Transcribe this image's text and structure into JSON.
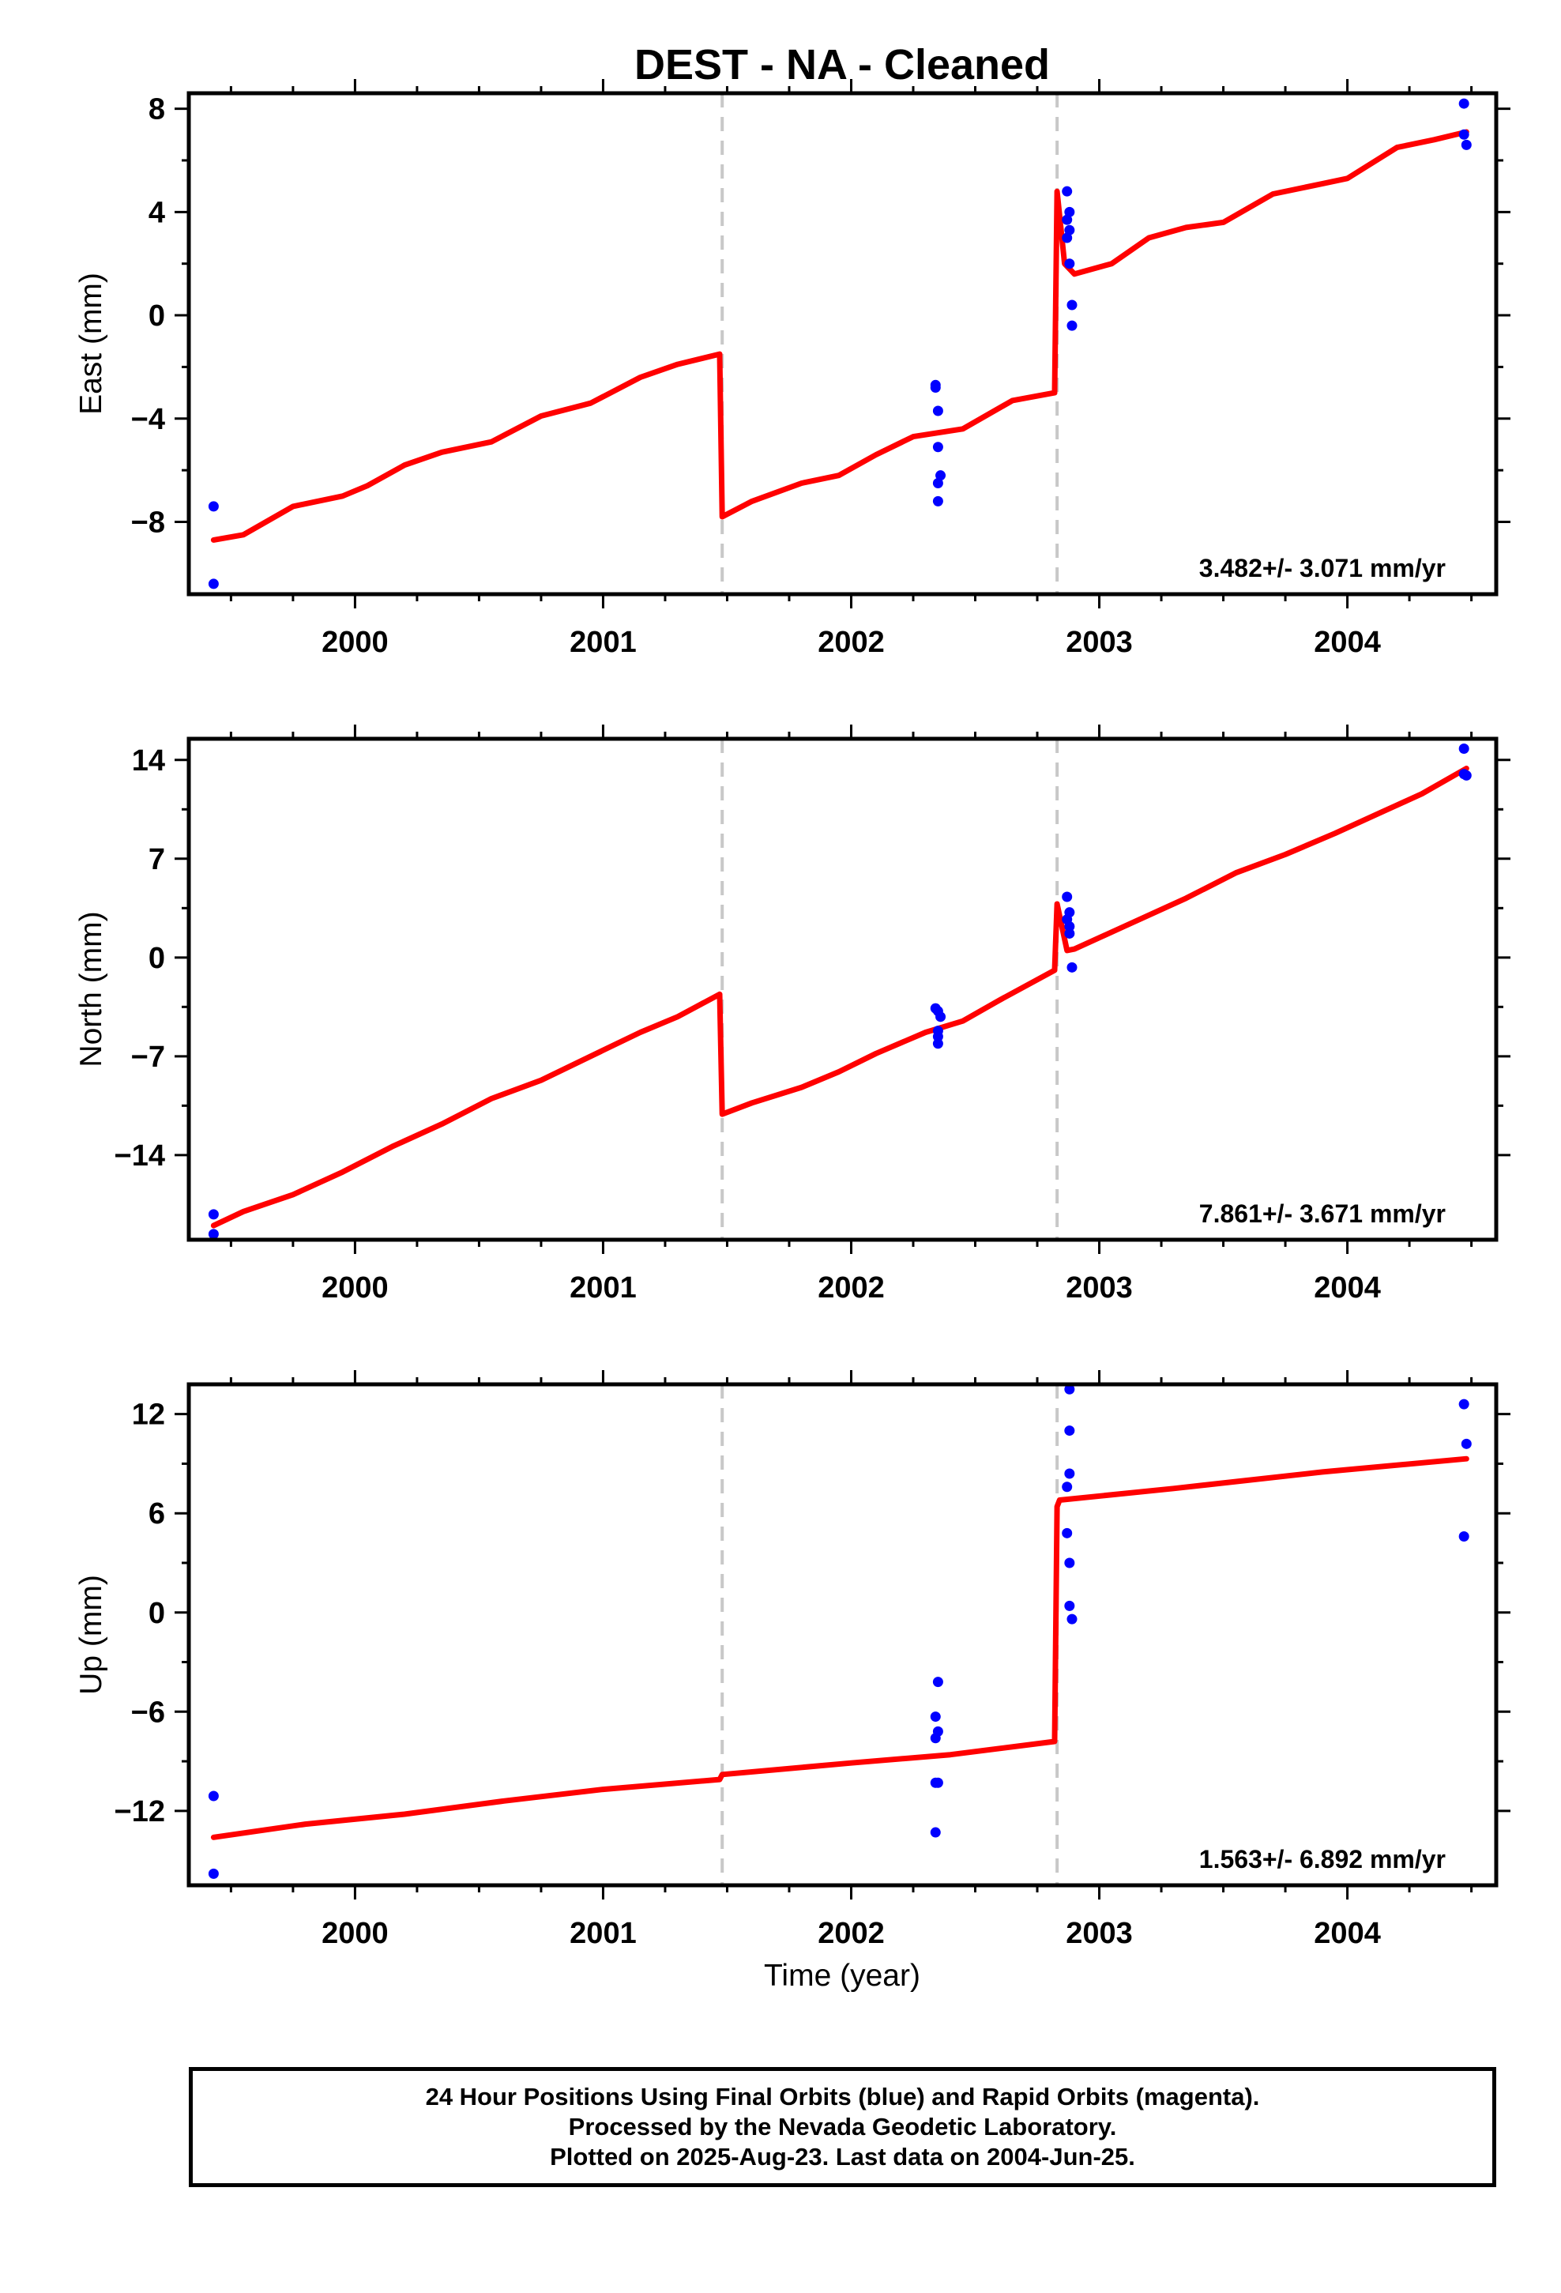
{
  "title": "DEST  - NA - Cleaned",
  "colors": {
    "data_points": "#0000ff",
    "model_line": "#ff0000",
    "event_lines": "#c8c8c8",
    "frame": "#000000"
  },
  "x_axis": {
    "label": "Time (year)",
    "ticks": [
      "2000",
      "2001",
      "2002",
      "2003",
      "2004"
    ]
  },
  "footer": {
    "line1": "24 Hour Positions Using Final Orbits (blue) and Rapid Orbits (magenta).",
    "line2": "Processed by the Nevada Geodetic Laboratory.",
    "line3": "Plotted on 2025-Aug-23. Last data on 2004-Jun-25."
  },
  "chart_data": [
    {
      "type": "scatter",
      "ylabel": "East (mm)",
      "rate_label": "3.482+/- 3.071 mm/yr",
      "xlim": [
        1999.33,
        2004.6
      ],
      "ylim": [
        -10.8,
        8.6
      ],
      "yticks": [
        8,
        4,
        0,
        -4,
        -8
      ],
      "ytick_labels": [
        "8",
        "4",
        "0",
        "−4",
        "−8"
      ],
      "xticks": [
        2000,
        2001,
        2002,
        2003,
        2004
      ],
      "event_lines": [
        2001.48,
        2002.83
      ],
      "points": [
        [
          1999.43,
          -7.4
        ],
        [
          1999.43,
          -10.4
        ],
        [
          2002.34,
          -2.7
        ],
        [
          2002.34,
          -2.8
        ],
        [
          2002.35,
          -3.7
        ],
        [
          2002.35,
          -5.1
        ],
        [
          2002.36,
          -6.2
        ],
        [
          2002.35,
          -6.5
        ],
        [
          2002.35,
          -7.2
        ],
        [
          2002.87,
          4.8
        ],
        [
          2002.88,
          4.0
        ],
        [
          2002.87,
          3.7
        ],
        [
          2002.88,
          3.3
        ],
        [
          2002.87,
          3.0
        ],
        [
          2002.88,
          2.0
        ],
        [
          2002.89,
          0.4
        ],
        [
          2002.89,
          -0.4
        ],
        [
          2004.47,
          8.2
        ],
        [
          2004.47,
          7.0
        ],
        [
          2004.48,
          6.6
        ]
      ],
      "model": [
        [
          1999.43,
          -8.7
        ],
        [
          1999.55,
          -8.5
        ],
        [
          1999.75,
          -7.4
        ],
        [
          1999.95,
          -7.0
        ],
        [
          2000.05,
          -6.6
        ],
        [
          2000.2,
          -5.8
        ],
        [
          2000.35,
          -5.3
        ],
        [
          2000.55,
          -4.9
        ],
        [
          2000.75,
          -3.9
        ],
        [
          2000.95,
          -3.4
        ],
        [
          2001.15,
          -2.4
        ],
        [
          2001.3,
          -1.9
        ],
        [
          2001.47,
          -1.5
        ],
        [
          2001.48,
          -7.8
        ],
        [
          2001.6,
          -7.2
        ],
        [
          2001.8,
          -6.5
        ],
        [
          2001.95,
          -6.2
        ],
        [
          2002.1,
          -5.4
        ],
        [
          2002.25,
          -4.7
        ],
        [
          2002.45,
          -4.4
        ],
        [
          2002.65,
          -3.3
        ],
        [
          2002.82,
          -3.0
        ],
        [
          2002.83,
          4.8
        ],
        [
          2002.86,
          2.0
        ],
        [
          2002.9,
          1.6
        ],
        [
          2003.05,
          2.0
        ],
        [
          2003.2,
          3.0
        ],
        [
          2003.35,
          3.4
        ],
        [
          2003.5,
          3.6
        ],
        [
          2003.7,
          4.7
        ],
        [
          2003.9,
          5.1
        ],
        [
          2004.0,
          5.3
        ],
        [
          2004.2,
          6.5
        ],
        [
          2004.35,
          6.8
        ],
        [
          2004.48,
          7.1
        ]
      ]
    },
    {
      "type": "scatter",
      "ylabel": "North (mm)",
      "rate_label": "7.861+/- 3.671 mm/yr",
      "xlim": [
        1999.33,
        2004.6
      ],
      "ylim": [
        -20.0,
        15.5
      ],
      "yticks": [
        14,
        7,
        0,
        -7,
        -14
      ],
      "ytick_labels": [
        "14",
        "7",
        "0",
        "−7",
        "−14"
      ],
      "xticks": [
        2000,
        2001,
        2002,
        2003,
        2004
      ],
      "event_lines": [
        2001.48,
        2002.83
      ],
      "points": [
        [
          1999.43,
          -18.2
        ],
        [
          1999.43,
          -19.6
        ],
        [
          2002.34,
          -3.6
        ],
        [
          2002.35,
          -3.8
        ],
        [
          2002.36,
          -4.2
        ],
        [
          2002.35,
          -5.2
        ],
        [
          2002.35,
          -5.6
        ],
        [
          2002.35,
          -6.1
        ],
        [
          2002.87,
          4.3
        ],
        [
          2002.88,
          3.2
        ],
        [
          2002.87,
          2.7
        ],
        [
          2002.88,
          2.2
        ],
        [
          2002.88,
          1.7
        ],
        [
          2002.89,
          -0.7
        ],
        [
          2004.47,
          14.8
        ],
        [
          2004.47,
          13.0
        ],
        [
          2004.48,
          12.9
        ]
      ],
      "model": [
        [
          1999.43,
          -19.0
        ],
        [
          1999.55,
          -18.0
        ],
        [
          1999.75,
          -16.8
        ],
        [
          1999.95,
          -15.2
        ],
        [
          2000.15,
          -13.4
        ],
        [
          2000.35,
          -11.8
        ],
        [
          2000.55,
          -10.0
        ],
        [
          2000.75,
          -8.7
        ],
        [
          2000.95,
          -7.0
        ],
        [
          2001.15,
          -5.3
        ],
        [
          2001.3,
          -4.2
        ],
        [
          2001.47,
          -2.6
        ],
        [
          2001.48,
          -11.1
        ],
        [
          2001.6,
          -10.3
        ],
        [
          2001.8,
          -9.2
        ],
        [
          2001.95,
          -8.1
        ],
        [
          2002.1,
          -6.8
        ],
        [
          2002.3,
          -5.3
        ],
        [
          2002.45,
          -4.5
        ],
        [
          2002.6,
          -3.0
        ],
        [
          2002.82,
          -0.9
        ],
        [
          2002.83,
          3.8
        ],
        [
          2002.87,
          0.5
        ],
        [
          2002.9,
          0.6
        ],
        [
          2003.1,
          2.2
        ],
        [
          2003.35,
          4.2
        ],
        [
          2003.55,
          6.0
        ],
        [
          2003.75,
          7.3
        ],
        [
          2003.95,
          8.8
        ],
        [
          2004.15,
          10.4
        ],
        [
          2004.3,
          11.6
        ],
        [
          2004.48,
          13.4
        ]
      ]
    },
    {
      "type": "scatter",
      "ylabel": "Up (mm)",
      "xlabel": "Time (year)",
      "rate_label": "1.563+/- 6.892 mm/yr",
      "xlim": [
        1999.33,
        2004.6
      ],
      "ylim": [
        -16.5,
        13.8
      ],
      "yticks": [
        12,
        6,
        0,
        -6,
        -12
      ],
      "ytick_labels": [
        "12",
        "6",
        "0",
        "−6",
        "−12"
      ],
      "xticks": [
        2000,
        2001,
        2002,
        2003,
        2004
      ],
      "event_lines": [
        2001.48,
        2002.83
      ],
      "points": [
        [
          1999.43,
          -11.1
        ],
        [
          1999.43,
          -15.8
        ],
        [
          2002.35,
          -4.2
        ],
        [
          2002.34,
          -6.3
        ],
        [
          2002.35,
          -7.2
        ],
        [
          2002.34,
          -7.6
        ],
        [
          2002.35,
          -10.3
        ],
        [
          2002.34,
          -10.3
        ],
        [
          2002.34,
          -13.3
        ],
        [
          2002.88,
          13.5
        ],
        [
          2002.88,
          11.0
        ],
        [
          2002.88,
          8.4
        ],
        [
          2002.87,
          7.6
        ],
        [
          2002.87,
          4.8
        ],
        [
          2002.88,
          3.0
        ],
        [
          2002.88,
          0.4
        ],
        [
          2002.89,
          -0.4
        ],
        [
          2004.47,
          12.6
        ],
        [
          2004.48,
          10.2
        ],
        [
          2004.47,
          4.6
        ]
      ],
      "model": [
        [
          1999.43,
          -13.6
        ],
        [
          1999.8,
          -12.8
        ],
        [
          2000.2,
          -12.2
        ],
        [
          2000.6,
          -11.4
        ],
        [
          2001.0,
          -10.7
        ],
        [
          2001.47,
          -10.1
        ],
        [
          2001.48,
          -9.8
        ],
        [
          2002.0,
          -9.1
        ],
        [
          2002.4,
          -8.6
        ],
        [
          2002.82,
          -7.8
        ],
        [
          2002.83,
          6.4
        ],
        [
          2002.84,
          6.8
        ],
        [
          2003.3,
          7.5
        ],
        [
          2003.9,
          8.5
        ],
        [
          2004.48,
          9.3
        ]
      ]
    }
  ]
}
